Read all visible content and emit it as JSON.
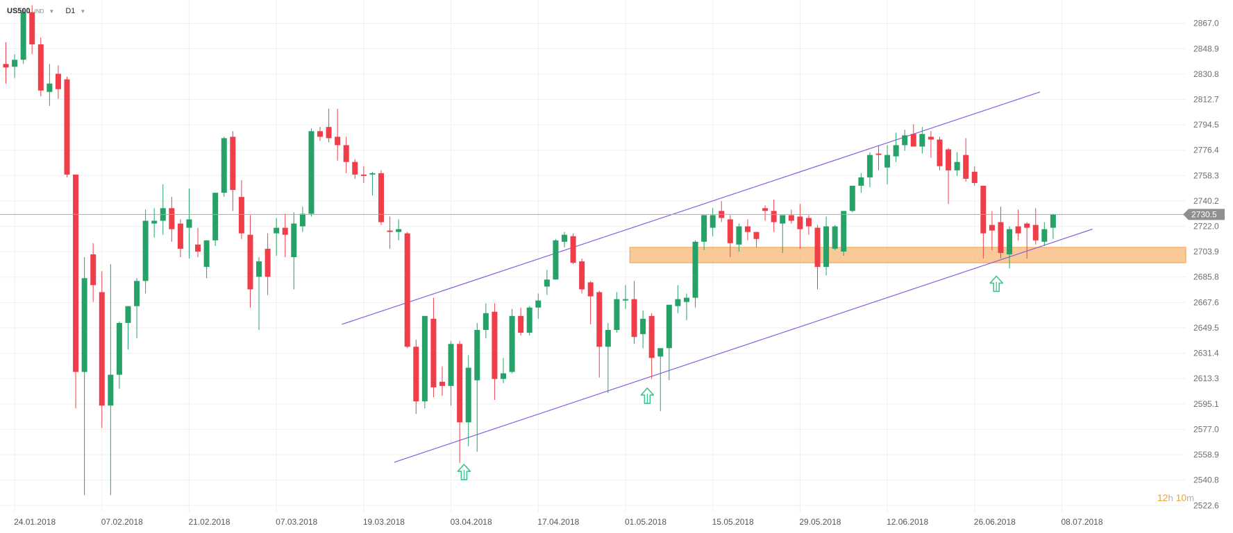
{
  "header": {
    "symbol": "US500",
    "instrument_class": "IND",
    "timeframe": "D1"
  },
  "timer": {
    "hours": "12",
    "hours_unit": "h",
    "minutes": "10",
    "minutes_unit": "m"
  },
  "current_price_label": "2730.5",
  "colors": {
    "up": "#26a269",
    "down": "#ef3e4a",
    "channel": "#8a5cd6",
    "support_zone": "#f7b46b",
    "price_line": "#a8a8a8",
    "arrow": "#3cc48d",
    "price_tag": "#8f8f8f",
    "grid": "#efefef"
  },
  "chart_data": {
    "type": "candlestick",
    "y_ticks": [
      "2867.0",
      "2848.9",
      "2830.8",
      "2812.7",
      "2794.5",
      "2776.4",
      "2758.3",
      "2740.2",
      "2722.0",
      "2703.9",
      "2685.8",
      "2667.6",
      "2649.5",
      "2631.4",
      "2613.3",
      "2595.1",
      "2577.0",
      "2558.9",
      "2540.8",
      "2522.6"
    ],
    "ylim": [
      2517.8,
      2883.7
    ],
    "x_labels": [
      {
        "date": "24.01.2018",
        "index": 1
      },
      {
        "date": "07.02.2018",
        "index": 11
      },
      {
        "date": "21.02.2018",
        "index": 21
      },
      {
        "date": "07.03.2018",
        "index": 31
      },
      {
        "date": "19.03.2018",
        "index": 41
      },
      {
        "date": "03.04.2018",
        "index": 51
      },
      {
        "date": "17.04.2018",
        "index": 61
      },
      {
        "date": "01.05.2018",
        "index": 71
      },
      {
        "date": "15.05.2018",
        "index": 81
      },
      {
        "date": "29.05.2018",
        "index": 91
      },
      {
        "date": "12.06.2018",
        "index": 101
      },
      {
        "date": "26.06.2018",
        "index": 111
      },
      {
        "date": "08.07.2018",
        "index": 121
      }
    ],
    "candles": [
      [
        2838.0,
        2853.5,
        2824.0,
        2835.5
      ],
      [
        2836.0,
        2845.0,
        2828.0,
        2841.0
      ],
      [
        2841.0,
        2877.0,
        2838.0,
        2875.0
      ],
      [
        2875.0,
        2880.0,
        2845.0,
        2852.0
      ],
      [
        2852.0,
        2857.0,
        2815.0,
        2819.0
      ],
      [
        2818.0,
        2838.0,
        2808.0,
        2824.0
      ],
      [
        2831.0,
        2837.0,
        2813.0,
        2820.0
      ],
      [
        2827.0,
        2829.0,
        2757.0,
        2759.0
      ],
      [
        2759.0,
        2759.0,
        2592.0,
        2618.0
      ],
      [
        2618.0,
        2700.0,
        2530.0,
        2685.0
      ],
      [
        2702.0,
        2710.0,
        2668.0,
        2680.0
      ],
      [
        2675.0,
        2690.0,
        2578.0,
        2594.0
      ],
      [
        2594.0,
        2695.0,
        2530.0,
        2616.0
      ],
      [
        2616.0,
        2654.0,
        2606.0,
        2653.0
      ],
      [
        2653.0,
        2665.0,
        2634.0,
        2665.0
      ],
      [
        2665.0,
        2685.0,
        2642.0,
        2683.0
      ],
      [
        2683.0,
        2734.0,
        2674.0,
        2726.0
      ],
      [
        2724.0,
        2735.0,
        2714.0,
        2726.0
      ],
      [
        2726.0,
        2752.0,
        2716.0,
        2735.0
      ],
      [
        2735.0,
        2743.0,
        2711.0,
        2720.0
      ],
      [
        2724.0,
        2727.0,
        2700.0,
        2706.0
      ],
      [
        2721.0,
        2749.0,
        2699.0,
        2727.0
      ],
      [
        2709.0,
        2721.0,
        2700.0,
        2704.0
      ],
      [
        2693.0,
        2712.0,
        2685.0,
        2712.0
      ],
      [
        2712.0,
        2746.0,
        2708.0,
        2746.0
      ],
      [
        2746.0,
        2786.0,
        2743.0,
        2785.0
      ],
      [
        2786.0,
        2790.0,
        2733.0,
        2748.0
      ],
      [
        2743.0,
        2755.0,
        2713.0,
        2717.0
      ],
      [
        2716.0,
        2730.0,
        2664.0,
        2677.0
      ],
      [
        2686.0,
        2700.0,
        2648.0,
        2697.0
      ],
      [
        2706.0,
        2717.0,
        2673.0,
        2686.0
      ],
      [
        2717.0,
        2728.0,
        2701.0,
        2721.0
      ],
      [
        2721.0,
        2731.0,
        2700.0,
        2716.0
      ],
      [
        2700.0,
        2732.0,
        2677.0,
        2724.0
      ],
      [
        2722.0,
        2736.0,
        2718.0,
        2731.0
      ],
      [
        2731.0,
        2792.0,
        2729.0,
        2790.0
      ],
      [
        2790.0,
        2793.0,
        2783.0,
        2786.0
      ],
      [
        2793.0,
        2806.0,
        2782.0,
        2785.0
      ],
      [
        2786.0,
        2806.0,
        2769.0,
        2780.0
      ],
      [
        2780.0,
        2786.0,
        2760.0,
        2768.0
      ],
      [
        2768.0,
        2770.0,
        2756.0,
        2759.0
      ],
      [
        2759.0,
        2765.0,
        2753.0,
        2758.0
      ],
      [
        2759.0,
        2761.0,
        2744.0,
        2760.0
      ],
      [
        2760.0,
        2762.0,
        2723.0,
        2725.0
      ],
      [
        2719.0,
        2729.0,
        2706.0,
        2718.0
      ],
      [
        2718.0,
        2727.0,
        2712.0,
        2720.0
      ],
      [
        2717.0,
        2718.0,
        2635.0,
        2636.0
      ],
      [
        2636.0,
        2641.0,
        2588.0,
        2597.0
      ],
      [
        2597.0,
        2656.0,
        2592.0,
        2658.0
      ],
      [
        2656.0,
        2671.0,
        2600.0,
        2607.0
      ],
      [
        2611.0,
        2622.0,
        2601.0,
        2608.0
      ],
      [
        2608.0,
        2640.0,
        2594.0,
        2638.0
      ],
      [
        2638.0,
        2640.0,
        2553.0,
        2582.0
      ],
      [
        2582.0,
        2630.0,
        2565.0,
        2621.0
      ],
      [
        2612.0,
        2653.0,
        2561.0,
        2648.0
      ],
      [
        2648.0,
        2667.0,
        2642.0,
        2660.0
      ],
      [
        2661.0,
        2667.0,
        2598.0,
        2613.0
      ],
      [
        2613.0,
        2628.0,
        2610.0,
        2617.0
      ],
      [
        2618.0,
        2663.0,
        2617.0,
        2658.0
      ],
      [
        2658.0,
        2664.0,
        2644.0,
        2646.0
      ],
      [
        2646.0,
        2665.0,
        2644.0,
        2664.0
      ],
      [
        2664.0,
        2674.0,
        2656.0,
        2669.0
      ],
      [
        2679.0,
        2691.0,
        2673.0,
        2684.0
      ],
      [
        2684.0,
        2713.0,
        2684.0,
        2712.0
      ],
      [
        2711.0,
        2718.0,
        2707.0,
        2716.0
      ],
      [
        2715.0,
        2717.0,
        2695.0,
        2696.0
      ],
      [
        2697.0,
        2699.0,
        2674.0,
        2677.0
      ],
      [
        2682.0,
        2683.0,
        2652.0,
        2672.0
      ],
      [
        2675.0,
        2676.0,
        2614.0,
        2636.0
      ],
      [
        2636.0,
        2653.0,
        2603.0,
        2648.0
      ],
      [
        2648.0,
        2675.0,
        2646.0,
        2670.0
      ],
      [
        2669.0,
        2680.0,
        2663.0,
        2670.0
      ],
      [
        2670.0,
        2683.0,
        2638.0,
        2643.0
      ],
      [
        2645.0,
        2662.0,
        2635.0,
        2656.0
      ],
      [
        2658.0,
        2660.0,
        2613.0,
        2628.0
      ],
      [
        2629.0,
        2635.0,
        2590.0,
        2635.0
      ],
      [
        2635.0,
        2666.0,
        2612.0,
        2666.0
      ],
      [
        2665.0,
        2680.0,
        2660.0,
        2670.0
      ],
      [
        2668.0,
        2674.0,
        2655.0,
        2671.0
      ],
      [
        2671.0,
        2712.0,
        2664.0,
        2711.0
      ],
      [
        2711.0,
        2730.0,
        2705.0,
        2730.0
      ],
      [
        2721.0,
        2735.0,
        2715.0,
        2730.0
      ],
      [
        2733.0,
        2740.0,
        2725.0,
        2728.0
      ],
      [
        2727.0,
        2730.0,
        2700.0,
        2710.0
      ],
      [
        2709.0,
        2724.0,
        2704.0,
        2722.0
      ],
      [
        2722.0,
        2727.0,
        2712.0,
        2718.0
      ],
      [
        2718.0,
        2718.0,
        2707.0,
        2713.0
      ],
      [
        2735.0,
        2737.0,
        2726.0,
        2733.0
      ],
      [
        2733.0,
        2741.0,
        2718.0,
        2725.0
      ],
      [
        2724.0,
        2730.0,
        2703.0,
        2730.0
      ],
      [
        2730.0,
        2734.0,
        2724.0,
        2726.0
      ],
      [
        2729.0,
        2738.0,
        2706.0,
        2720.0
      ],
      [
        2728.0,
        2730.0,
        2716.0,
        2722.0
      ],
      [
        2721.0,
        2723.0,
        2677.0,
        2693.0
      ],
      [
        2693.0,
        2729.0,
        2687.0,
        2722.0
      ],
      [
        2706.0,
        2723.0,
        2705.0,
        2722.0
      ],
      [
        2704.0,
        2733.0,
        2701.0,
        2733.0
      ],
      [
        2733.0,
        2751.0,
        2732.0,
        2751.0
      ],
      [
        2751.0,
        2760.0,
        2746.0,
        2757.0
      ],
      [
        2757.0,
        2775.0,
        2750.0,
        2773.0
      ],
      [
        2774.0,
        2780.0,
        2762.0,
        2773.0
      ],
      [
        2764.0,
        2780.0,
        2752.0,
        2773.0
      ],
      [
        2772.0,
        2789.0,
        2768.0,
        2780.0
      ],
      [
        2780.0,
        2791.0,
        2776.0,
        2787.0
      ],
      [
        2788.0,
        2795.0,
        2779.0,
        2779.0
      ],
      [
        2779.0,
        2793.0,
        2774.0,
        2788.0
      ],
      [
        2786.0,
        2790.0,
        2771.0,
        2784.0
      ],
      [
        2784.0,
        2786.0,
        2762.0,
        2765.0
      ],
      [
        2777.0,
        2778.0,
        2738.0,
        2762.0
      ],
      [
        2762.0,
        2775.0,
        2758.0,
        2768.0
      ],
      [
        2773.0,
        2785.0,
        2754.0,
        2756.0
      ],
      [
        2761.0,
        2765.0,
        2751.0,
        2753.0
      ],
      [
        2751.0,
        2751.0,
        2699.0,
        2717.0
      ],
      [
        2723.0,
        2733.0,
        2705.0,
        2719.0
      ],
      [
        2725.0,
        2736.0,
        2699.0,
        2703.0
      ],
      [
        2702.0,
        2722.0,
        2692.0,
        2720.0
      ],
      [
        2722.0,
        2734.0,
        2712.0,
        2717.0
      ],
      [
        2724.0,
        2725.0,
        2699.0,
        2721.0
      ],
      [
        2723.0,
        2735.0,
        2709.0,
        2712.0
      ],
      [
        2711.0,
        2725.0,
        2708.0,
        2720.0
      ],
      [
        2721.0,
        2731.0,
        2713.0,
        2730.5
      ]
    ],
    "first_candle_date": "23.01.2018",
    "channel_upper": {
      "from": [
        38.5,
        2652.0
      ],
      "to": [
        118.5,
        2818.0
      ]
    },
    "channel_lower": {
      "from": [
        44.5,
        2553.5
      ],
      "to": [
        124.5,
        2720.0
      ]
    },
    "support_zone": {
      "from_index": 71.5,
      "y_low": 2696.0,
      "y_high": 2707.0
    },
    "current_price": 2730.5,
    "arrows": [
      {
        "index": 52.5,
        "price": 2546.5
      },
      {
        "index": 73.5,
        "price": 2601.0
      },
      {
        "index": 113.5,
        "price": 2681.0
      }
    ],
    "grid": true
  }
}
